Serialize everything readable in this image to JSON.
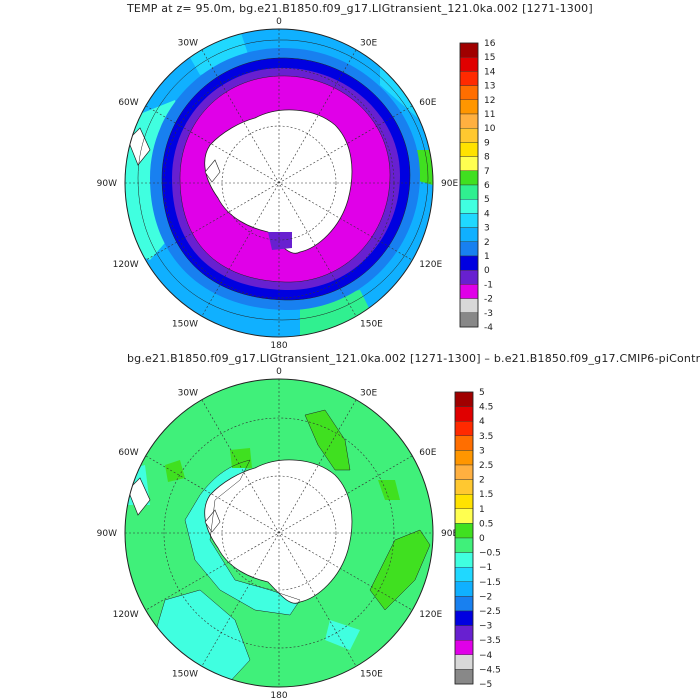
{
  "panel_top": {
    "title": "TEMP at z=   95.0m, bg.e21.B1850.f09_g17.LIGtransient_121.0ka.002 [1271-1300]",
    "longitude_labels": [
      "0",
      "30E",
      "60E",
      "90E",
      "120E",
      "150E",
      "180",
      "150W",
      "120W",
      "90W",
      "60W",
      "30W"
    ],
    "colorbar": {
      "labels": [
        "16",
        "15",
        "14",
        "13",
        "12",
        "11",
        "10",
        "9",
        "8",
        "7",
        "6",
        "5",
        "4",
        "3",
        "2",
        "1",
        "0",
        "-1",
        "-2",
        "-3",
        "-4"
      ],
      "colors": [
        "#a00000",
        "#e00000",
        "#ff2a00",
        "#ff6e00",
        "#ff9600",
        "#ffb040",
        "#ffc830",
        "#ffe200",
        "#ffff50",
        "#40e020",
        "#30f090",
        "#40ffe0",
        "#20d8ff",
        "#10b0ff",
        "#1880f0",
        "#0000e0",
        "#6820d0",
        "#e000e8",
        "#d8d8d8",
        "#888888"
      ]
    }
  },
  "panel_bottom": {
    "title": "bg.e21.B1850.f09_g17.LIGtransient_121.0ka.002 [1271-1300] – b.e21.B1850.f09_g17.CMIP6-piContr",
    "longitude_labels": [
      "0",
      "30E",
      "60E",
      "90E",
      "120E",
      "150E",
      "180",
      "150W",
      "120W",
      "90W",
      "60W",
      "30W"
    ],
    "colorbar": {
      "labels": [
        "5",
        "4.5",
        "4",
        "3.5",
        "3",
        "2.5",
        "2",
        "1.5",
        "1",
        "0.5",
        "0",
        "−0.5",
        "−1",
        "−1.5",
        "−2",
        "−2.5",
        "−3",
        "−3.5",
        "−4",
        "−4.5",
        "−5"
      ],
      "colors": [
        "#a00000",
        "#e00000",
        "#ff2a00",
        "#ff6e00",
        "#ff9600",
        "#ffb040",
        "#ffc830",
        "#ffe200",
        "#ffff50",
        "#40e020",
        "#40f07a",
        "#40ffe0",
        "#20d8ff",
        "#10b0ff",
        "#1880f0",
        "#0000e0",
        "#6820d0",
        "#e000e8",
        "#d8d8d8",
        "#888888"
      ]
    }
  }
}
